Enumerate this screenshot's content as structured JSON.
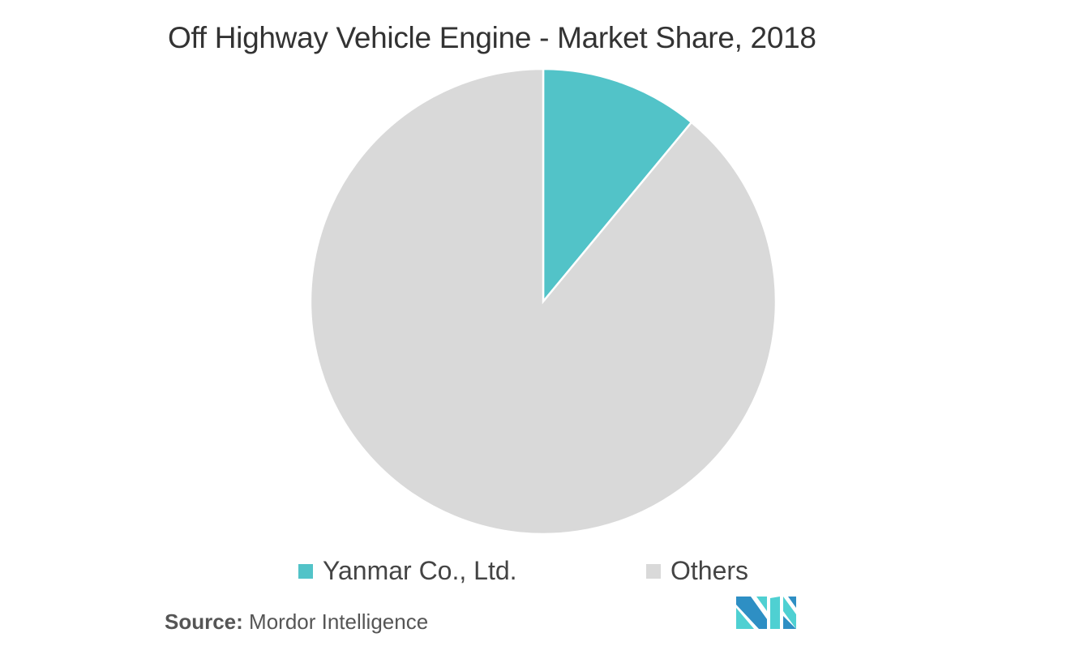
{
  "chart_data": {
    "type": "pie",
    "title": "Off Highway Vehicle Engine - Market Share, 2018",
    "slices": [
      {
        "label": "Yanmar Co., Ltd.",
        "value": 11,
        "color": "#52c3c8"
      },
      {
        "label": "Others",
        "value": 89,
        "color": "#d9d9d9"
      }
    ],
    "legend_position": "bottom",
    "start_angle": "top, clockwise"
  },
  "source": {
    "label": "Source:",
    "text": "Mordor Intelligence"
  },
  "logo": {
    "text": "Mordor Intelligence",
    "colors": [
      "#2e8fc4",
      "#4fd0d2"
    ]
  }
}
